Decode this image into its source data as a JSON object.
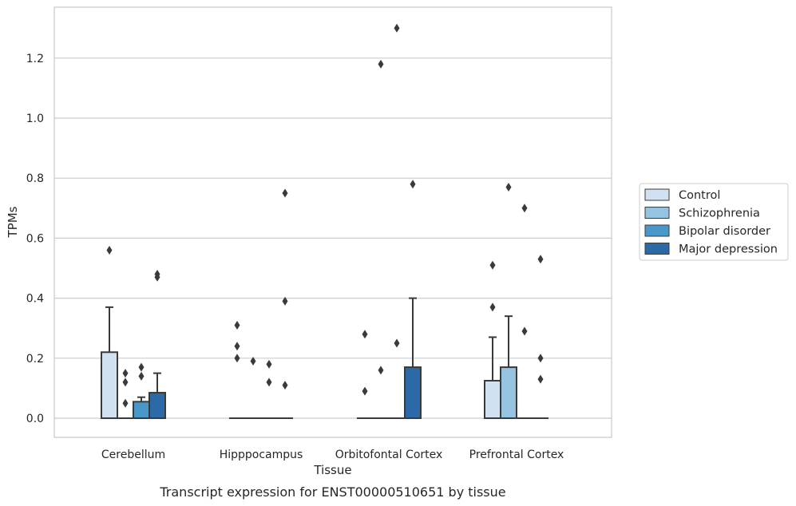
{
  "caption": "Transcript expression for ENST00000510651 by tissue",
  "chart_data": {
    "type": "box",
    "title": "",
    "xlabel": "Tissue",
    "ylabel": "TPMs",
    "ylim": [
      -0.065,
      1.36
    ],
    "yticks": [
      0.0,
      0.2,
      0.4,
      0.6,
      0.8,
      1.0,
      1.2
    ],
    "ytick_labels": [
      "0.0",
      "0.2",
      "0.4",
      "0.6",
      "0.8",
      "1.0",
      "1.2"
    ],
    "grid": "horizontal",
    "legend_position": "right",
    "categories": [
      "Cerebellum",
      "Hipppocampus",
      "Orbitofontal Cortex",
      "Prefrontal Cortex"
    ],
    "series": [
      {
        "name": "Control",
        "color": "#d0e1f2",
        "boxes": [
          {
            "q1": 0.0,
            "median": 0.0,
            "q3": 0.22,
            "whisker_low": 0.0,
            "whisker_high": 0.37,
            "outliers": [
              0.56
            ]
          },
          {
            "q1": 0.0,
            "median": 0.0,
            "q3": 0.0,
            "whisker_low": 0.0,
            "whisker_high": 0.0,
            "outliers": [
              0.31,
              0.24,
              0.2
            ]
          },
          {
            "q1": 0.0,
            "median": 0.0,
            "q3": 0.0,
            "whisker_low": 0.0,
            "whisker_high": 0.0,
            "outliers": [
              0.28,
              0.09
            ]
          },
          {
            "q1": 0.0,
            "median": 0.0,
            "q3": 0.125,
            "whisker_low": 0.0,
            "whisker_high": 0.27,
            "outliers": [
              0.51,
              0.37
            ]
          }
        ]
      },
      {
        "name": "Schizophrenia",
        "color": "#94c4df",
        "boxes": [
          {
            "q1": 0.0,
            "median": 0.0,
            "q3": 0.0,
            "whisker_low": 0.0,
            "whisker_high": 0.0,
            "outliers": [
              0.15,
              0.12,
              0.05
            ]
          },
          {
            "q1": 0.0,
            "median": 0.0,
            "q3": 0.0,
            "whisker_low": 0.0,
            "whisker_high": 0.0,
            "outliers": [
              0.19
            ]
          },
          {
            "q1": 0.0,
            "median": 0.0,
            "q3": 0.0,
            "whisker_low": 0.0,
            "whisker_high": 0.0,
            "outliers": [
              1.18,
              0.16
            ]
          },
          {
            "q1": 0.0,
            "median": 0.0,
            "q3": 0.17,
            "whisker_low": 0.0,
            "whisker_high": 0.34,
            "outliers": [
              0.77
            ]
          }
        ]
      },
      {
        "name": "Bipolar disorder",
        "color": "#4a98c9",
        "boxes": [
          {
            "q1": 0.0,
            "median": 0.0,
            "q3": 0.055,
            "whisker_low": 0.0,
            "whisker_high": 0.07,
            "outliers": [
              0.17,
              0.14
            ]
          },
          {
            "q1": 0.0,
            "median": 0.0,
            "q3": 0.0,
            "whisker_low": 0.0,
            "whisker_high": 0.0,
            "outliers": [
              0.18,
              0.12
            ]
          },
          {
            "q1": 0.0,
            "median": 0.0,
            "q3": 0.0,
            "whisker_low": 0.0,
            "whisker_high": 0.0,
            "outliers": [
              1.3,
              0.25
            ]
          },
          {
            "q1": 0.0,
            "median": 0.0,
            "q3": 0.0,
            "whisker_low": 0.0,
            "whisker_high": 0.0,
            "outliers": [
              0.7,
              0.29
            ]
          }
        ]
      },
      {
        "name": "Major depression",
        "color": "#2b6aa6",
        "boxes": [
          {
            "q1": 0.0,
            "median": 0.0,
            "q3": 0.085,
            "whisker_low": 0.0,
            "whisker_high": 0.15,
            "outliers": [
              0.48,
              0.47
            ]
          },
          {
            "q1": 0.0,
            "median": 0.0,
            "q3": 0.0,
            "whisker_low": 0.0,
            "whisker_high": 0.0,
            "outliers": [
              0.75,
              0.39,
              0.11
            ]
          },
          {
            "q1": 0.0,
            "median": 0.0,
            "q3": 0.17,
            "whisker_low": 0.0,
            "whisker_high": 0.4,
            "outliers": [
              0.78
            ]
          },
          {
            "q1": 0.0,
            "median": 0.0,
            "q3": 0.0,
            "whisker_low": 0.0,
            "whisker_high": 0.0,
            "outliers": [
              0.53,
              0.2,
              0.13
            ]
          }
        ]
      }
    ]
  }
}
